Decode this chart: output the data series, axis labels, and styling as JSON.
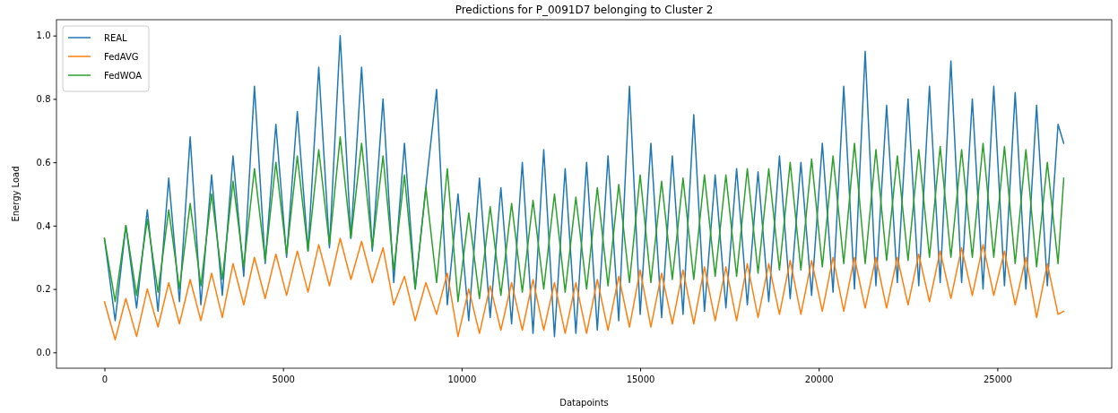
{
  "chart_data": {
    "type": "line",
    "title": "Predictions for P_0091D7 belonging to Cluster 2",
    "xlabel": "Datapoints",
    "ylabel": "Energy Load",
    "x": [
      0,
      300,
      600,
      900,
      1200,
      1500,
      1800,
      2100,
      2400,
      2700,
      3000,
      3300,
      3600,
      3900,
      4200,
      4500,
      4800,
      5100,
      5400,
      5700,
      6000,
      6300,
      6600,
      6900,
      7200,
      7500,
      7800,
      8100,
      8400,
      8700,
      9000,
      9300,
      9600,
      9900,
      10200,
      10500,
      10800,
      11100,
      11400,
      11700,
      12000,
      12300,
      12600,
      12900,
      13200,
      13500,
      13800,
      14100,
      14400,
      14700,
      15000,
      15300,
      15600,
      15900,
      16200,
      16500,
      16800,
      17100,
      17400,
      17700,
      18000,
      18300,
      18600,
      18900,
      19200,
      19500,
      19800,
      20100,
      20400,
      20700,
      21000,
      21300,
      21600,
      21900,
      22200,
      22500,
      22800,
      23100,
      23400,
      23700,
      24000,
      24300,
      24600,
      24900,
      25200,
      25500,
      25800,
      26100,
      26400,
      26700,
      26860
    ],
    "series": [
      {
        "name": "REAL",
        "color": "#1f77b4",
        "values": [
          0.36,
          0.1,
          0.4,
          0.14,
          0.45,
          0.13,
          0.55,
          0.16,
          0.68,
          0.15,
          0.56,
          0.18,
          0.62,
          0.24,
          0.84,
          0.28,
          0.72,
          0.3,
          0.76,
          0.32,
          0.9,
          0.33,
          1.0,
          0.36,
          0.9,
          0.32,
          0.8,
          0.22,
          0.66,
          0.2,
          0.52,
          0.83,
          0.15,
          0.5,
          0.1,
          0.55,
          0.11,
          0.52,
          0.09,
          0.6,
          0.06,
          0.64,
          0.05,
          0.58,
          0.06,
          0.6,
          0.07,
          0.62,
          0.1,
          0.84,
          0.12,
          0.66,
          0.11,
          0.62,
          0.12,
          0.75,
          0.13,
          0.56,
          0.14,
          0.58,
          0.15,
          0.57,
          0.16,
          0.62,
          0.17,
          0.6,
          0.18,
          0.66,
          0.19,
          0.84,
          0.2,
          0.95,
          0.21,
          0.78,
          0.22,
          0.8,
          0.21,
          0.84,
          0.22,
          0.92,
          0.22,
          0.8,
          0.2,
          0.84,
          0.21,
          0.82,
          0.2,
          0.78,
          0.21,
          0.72,
          0.66
        ]
      },
      {
        "name": "FedAVG",
        "color": "#ff7f0e",
        "values": [
          0.16,
          0.04,
          0.17,
          0.05,
          0.2,
          0.08,
          0.22,
          0.09,
          0.23,
          0.1,
          0.25,
          0.11,
          0.28,
          0.15,
          0.3,
          0.17,
          0.31,
          0.18,
          0.32,
          0.19,
          0.34,
          0.21,
          0.36,
          0.23,
          0.35,
          0.22,
          0.33,
          0.15,
          0.24,
          0.1,
          0.22,
          0.12,
          0.25,
          0.05,
          0.2,
          0.06,
          0.21,
          0.07,
          0.22,
          0.07,
          0.23,
          0.07,
          0.22,
          0.06,
          0.22,
          0.06,
          0.23,
          0.07,
          0.24,
          0.08,
          0.26,
          0.08,
          0.25,
          0.09,
          0.26,
          0.09,
          0.27,
          0.1,
          0.27,
          0.1,
          0.28,
          0.11,
          0.28,
          0.12,
          0.29,
          0.12,
          0.29,
          0.13,
          0.3,
          0.13,
          0.3,
          0.14,
          0.3,
          0.14,
          0.3,
          0.15,
          0.31,
          0.16,
          0.32,
          0.17,
          0.33,
          0.18,
          0.34,
          0.18,
          0.32,
          0.15,
          0.3,
          0.11,
          0.28,
          0.12,
          0.13
        ]
      },
      {
        "name": "FedWOA",
        "color": "#2ca02c",
        "values": [
          0.36,
          0.16,
          0.4,
          0.18,
          0.42,
          0.19,
          0.45,
          0.2,
          0.47,
          0.21,
          0.5,
          0.23,
          0.54,
          0.27,
          0.58,
          0.29,
          0.6,
          0.31,
          0.62,
          0.32,
          0.64,
          0.34,
          0.68,
          0.36,
          0.66,
          0.33,
          0.62,
          0.26,
          0.56,
          0.2,
          0.52,
          0.22,
          0.58,
          0.16,
          0.44,
          0.17,
          0.46,
          0.18,
          0.47,
          0.19,
          0.48,
          0.2,
          0.5,
          0.19,
          0.49,
          0.2,
          0.52,
          0.21,
          0.53,
          0.22,
          0.56,
          0.22,
          0.54,
          0.23,
          0.55,
          0.23,
          0.56,
          0.24,
          0.56,
          0.24,
          0.58,
          0.25,
          0.58,
          0.26,
          0.6,
          0.26,
          0.61,
          0.27,
          0.62,
          0.28,
          0.66,
          0.28,
          0.64,
          0.29,
          0.62,
          0.29,
          0.64,
          0.3,
          0.65,
          0.3,
          0.64,
          0.3,
          0.66,
          0.3,
          0.65,
          0.28,
          0.64,
          0.27,
          0.6,
          0.28,
          0.55
        ]
      }
    ],
    "xlim": [
      -1343,
      28203
    ],
    "xticks": [
      0,
      5000,
      10000,
      15000,
      20000,
      25000
    ],
    "ylim": [
      -0.05,
      1.05
    ],
    "yticks": [
      {
        "value": 0,
        "label": "0.0"
      },
      {
        "value": 0.2,
        "label": "0.2"
      },
      {
        "value": 0.4,
        "label": "0.4"
      },
      {
        "value": 0.6,
        "label": "0.6"
      },
      {
        "value": 0.8,
        "label": "0.8"
      },
      {
        "value": 1,
        "label": "1.0"
      }
    ],
    "grid": false,
    "legend": "top left",
    "marker": "none",
    "line_style": "solid"
  }
}
